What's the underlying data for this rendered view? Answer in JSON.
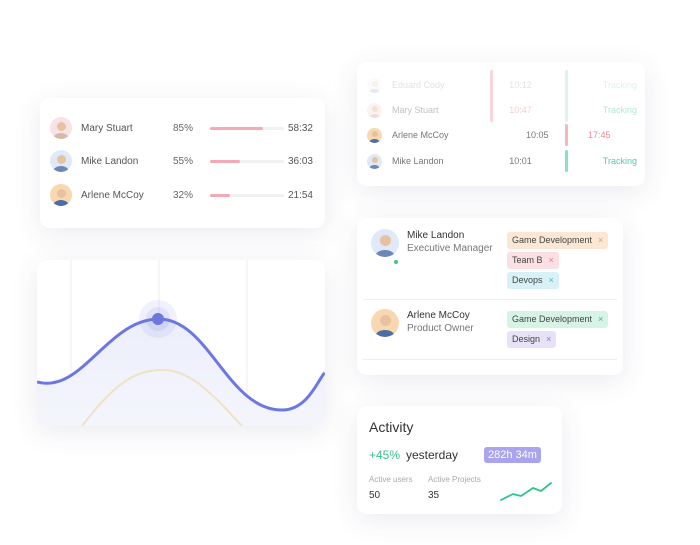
{
  "progress_card": {
    "rows": [
      {
        "name": "Mary Stuart",
        "percent": "85%",
        "progress": 0.85,
        "time": "58:32"
      },
      {
        "name": "Mike Landon",
        "percent": "55%",
        "progress": 0.55,
        "time": "36:03"
      },
      {
        "name": "Arlene McCoy",
        "percent": "32%",
        "progress": 0.32,
        "time": "21:54"
      }
    ]
  },
  "tracking_card": {
    "rows": [
      {
        "name": "Eduard Cody",
        "start": "10:12",
        "end": "",
        "status": "Tracking"
      },
      {
        "name": "Mary Stuart",
        "start": "10:47",
        "end": "",
        "status": "Tracking"
      },
      {
        "name": "Arlene McCoy",
        "start": "10:05",
        "end": "17:45",
        "status": ""
      },
      {
        "name": "Mike Landon",
        "start": "10:01",
        "end": "",
        "status": "Tracking"
      }
    ]
  },
  "team_card": {
    "people": [
      {
        "name": "Mike Landon",
        "role": "Executive Manager",
        "tags": [
          "Game Development",
          "Team B",
          "Devops"
        ]
      },
      {
        "name": "Arlene McCoy",
        "role": "Product Owner",
        "tags": [
          "Game Development",
          "Design"
        ]
      }
    ]
  },
  "activity_card": {
    "title": "Activity",
    "change": "+45%",
    "period": "yesterday",
    "hours": "282h 34m",
    "active_users_label": "Active users",
    "active_users": "50",
    "active_projects_label": "Active Projects",
    "active_projects": "35"
  },
  "colors": {
    "accent": "#6c78e0",
    "progress_fill": "#f4a9b4",
    "tracking_green": "#4fcf9a",
    "alert_red": "#f08a96"
  },
  "icons": {
    "remove_tag": "×"
  }
}
